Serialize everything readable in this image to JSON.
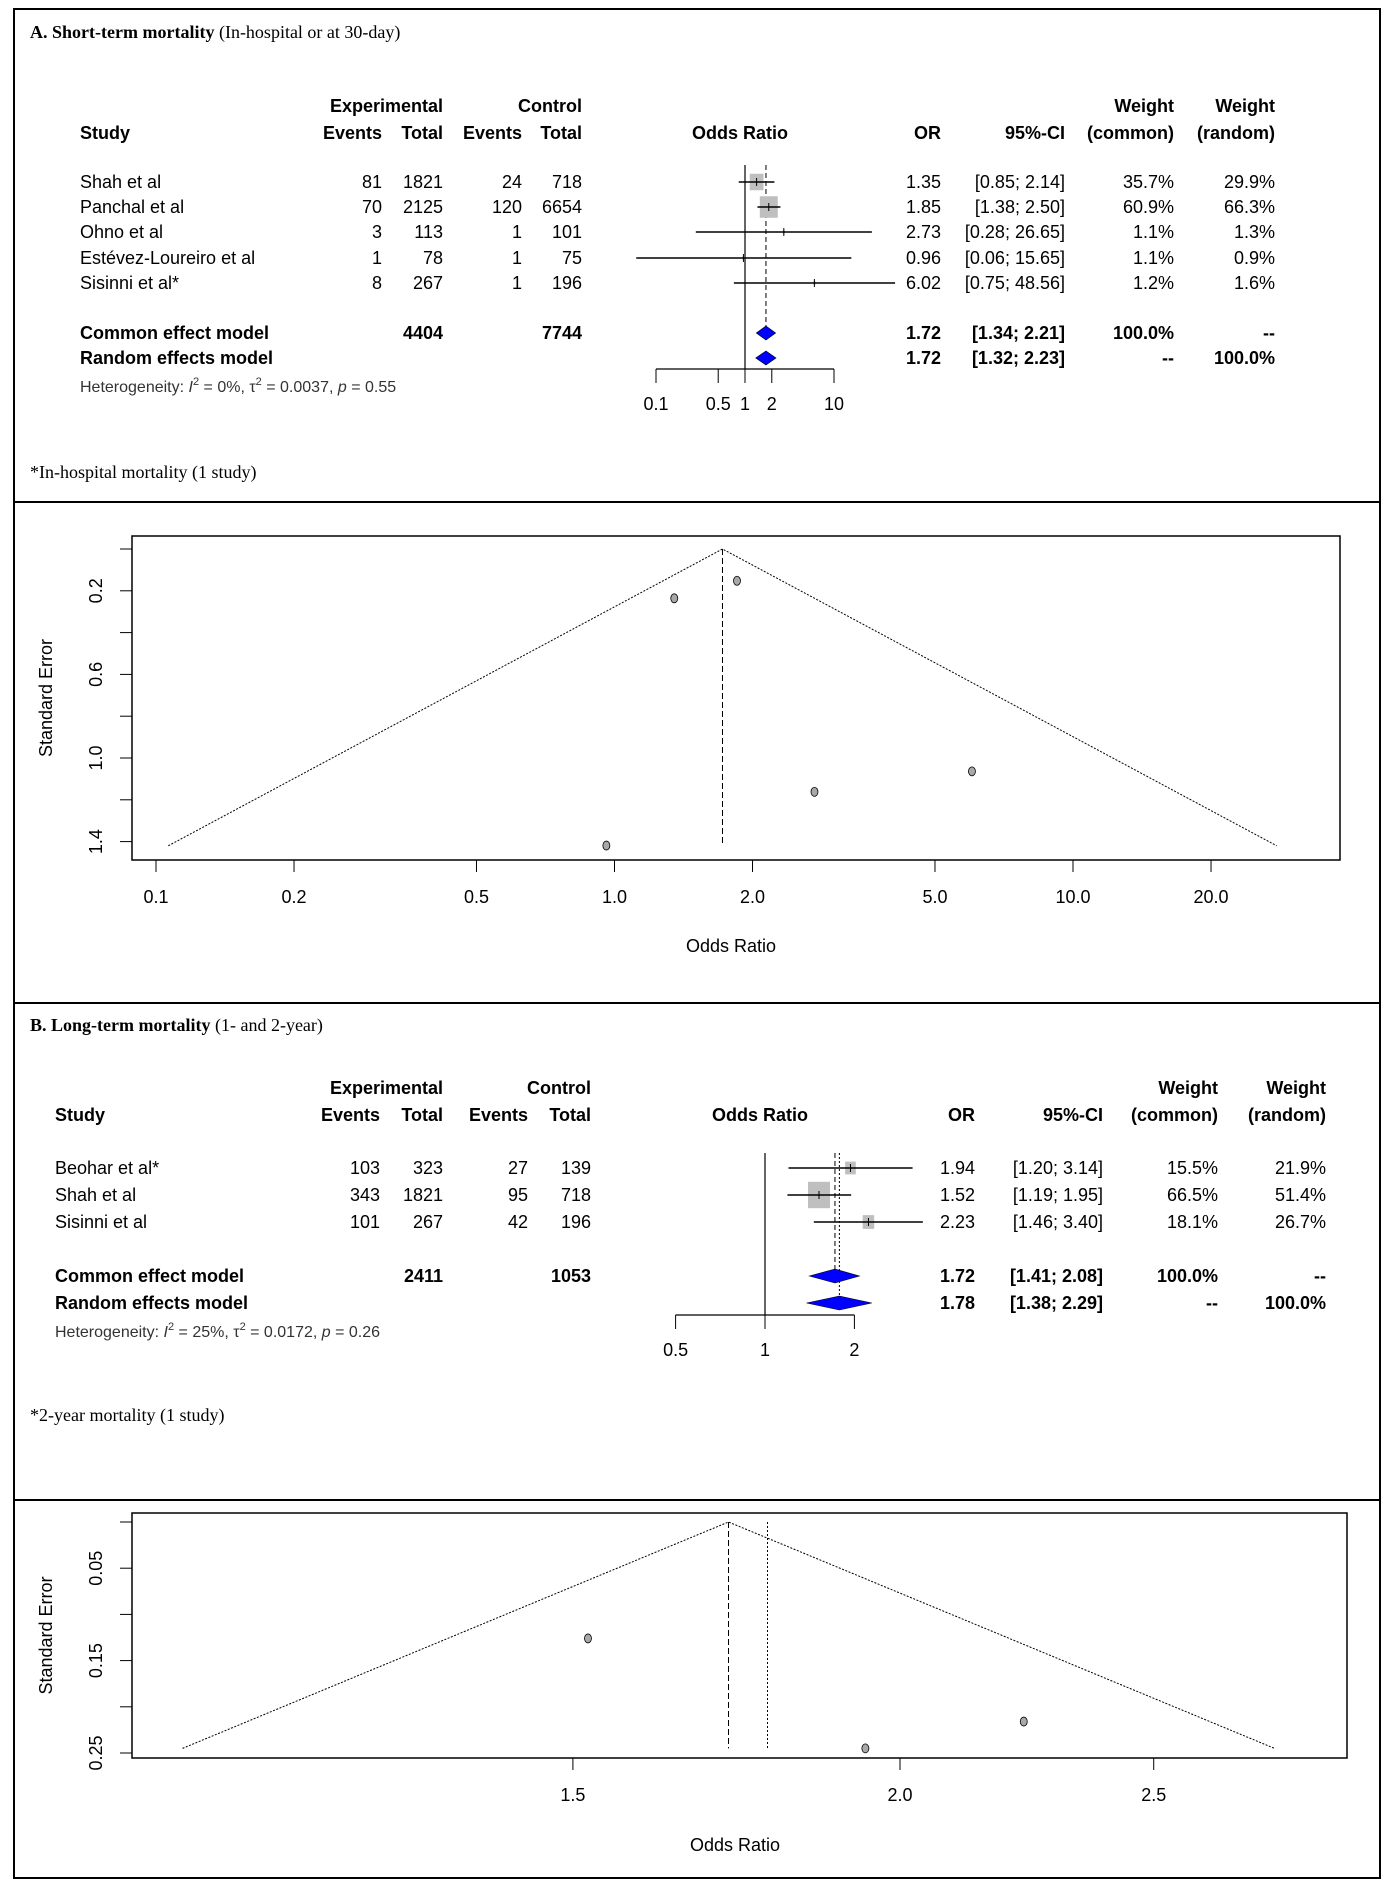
{
  "chart_data": [
    {
      "type": "forest",
      "panel": "A",
      "title_bold": "A. Short-term mortality",
      "title_rest": " (In-hospital or at 30-day)",
      "headers": {
        "study": "Study",
        "experimental": "Experimental",
        "control": "Control",
        "events": "Events",
        "total": "Total",
        "odds_ratio": "Odds Ratio",
        "or": "OR",
        "ci": "95%-CI",
        "weight": "Weight",
        "common": "(common)",
        "random": "(random)"
      },
      "studies": [
        {
          "name": "Shah et al",
          "e_events": "81",
          "e_total": "1821",
          "c_events": "24",
          "c_total": "718",
          "or": "1.35",
          "ci": "[0.85; 2.14]",
          "w_common": "35.7%",
          "w_random": "29.9%",
          "or_val": 1.35,
          "lo": 0.85,
          "hi": 2.14,
          "weight": 35.7
        },
        {
          "name": "Panchal et al",
          "e_events": "70",
          "e_total": "2125",
          "c_events": "120",
          "c_total": "6654",
          "or": "1.85",
          "ci": "[1.38; 2.50]",
          "w_common": "60.9%",
          "w_random": "66.3%",
          "or_val": 1.85,
          "lo": 1.38,
          "hi": 2.5,
          "weight": 60.9
        },
        {
          "name": "Ohno et al",
          "e_events": "3",
          "e_total": "113",
          "c_events": "1",
          "c_total": "101",
          "or": "2.73",
          "ci": "[0.28; 26.65]",
          "w_common": "1.1%",
          "w_random": "1.3%",
          "or_val": 2.73,
          "lo": 0.28,
          "hi": 26.65,
          "weight": 1.1
        },
        {
          "name": "Estévez-Loureiro et al",
          "e_events": "1",
          "e_total": "78",
          "c_events": "1",
          "c_total": "75",
          "or": "0.96",
          "ci": "[0.06; 15.65]",
          "w_common": "1.1%",
          "w_random": "0.9%",
          "or_val": 0.96,
          "lo": 0.06,
          "hi": 15.65,
          "weight": 1.1
        },
        {
          "name": "Sisinni et al*",
          "e_events": "8",
          "e_total": "267",
          "c_events": "1",
          "c_total": "196",
          "or": "6.02",
          "ci": "[0.75; 48.56]",
          "w_common": "1.2%",
          "w_random": "1.6%",
          "or_val": 6.02,
          "lo": 0.75,
          "hi": 48.56,
          "weight": 1.2
        }
      ],
      "common": {
        "label": "Common effect model",
        "e_total": "4404",
        "c_total": "7744",
        "or": "1.72",
        "ci": "[1.34; 2.21]",
        "w_common": "100.0%",
        "w_random": "--",
        "or_val": 1.72,
        "lo": 1.34,
        "hi": 2.21
      },
      "random": {
        "label": "Random effects model",
        "or": "1.72",
        "ci": "[1.32; 2.23]",
        "w_common": "--",
        "w_random": "100.0%",
        "or_val": 1.72,
        "lo": 1.32,
        "hi": 2.23
      },
      "heterogeneity": [
        {
          "t": "Heterogeneity: "
        },
        {
          "t": "I",
          "i": true
        },
        {
          "t": "2",
          "sup": true
        },
        {
          "t": " = 0%, τ"
        },
        {
          "t": "2",
          "sup": true
        },
        {
          "t": " = 0.0037, "
        },
        {
          "t": "p",
          "i": true
        },
        {
          "t": " = 0.55"
        }
      ],
      "axis_ticks": [
        0.1,
        0.5,
        1,
        2,
        10
      ],
      "axis_labels": [
        "0.1",
        "0.5",
        "1",
        "2",
        "10"
      ],
      "footnote": "*In-hospital mortality (1 study)"
    },
    {
      "type": "scatter",
      "panel": "A-funnel",
      "xlabel": "Odds Ratio",
      "ylabel": "Standard Error",
      "x_scale": "log",
      "x_ticks": [
        0.1,
        0.2,
        0.5,
        1,
        2,
        5,
        10,
        20
      ],
      "x_tick_labels": [
        "0.1",
        "0.2",
        "0.5",
        "1.0",
        "2.0",
        "5.0",
        "10.0",
        "20.0"
      ],
      "y_ticks": [
        0,
        0.2,
        0.4,
        0.6,
        0.8,
        1.0,
        1.2,
        1.4
      ],
      "y_tick_labels": [
        "",
        "0.2",
        "",
        "0.6",
        "",
        "1.0",
        "",
        "1.4"
      ],
      "y_reversed": true,
      "pooled": 1.72,
      "max_se": 1.42,
      "points": [
        {
          "or": 1.35,
          "se": 0.236
        },
        {
          "or": 1.85,
          "se": 0.152
        },
        {
          "or": 2.73,
          "se": 1.162
        },
        {
          "or": 0.96,
          "se": 1.419
        },
        {
          "or": 6.02,
          "se": 1.064
        }
      ]
    },
    {
      "type": "forest",
      "panel": "B",
      "title_bold": "B. Long-term mortality",
      "title_rest": " (1- and 2-year)",
      "headers": {
        "study": "Study",
        "experimental": "Experimental",
        "control": "Control",
        "events": "Events",
        "total": "Total",
        "odds_ratio": "Odds Ratio",
        "or": "OR",
        "ci": "95%-CI",
        "weight": "Weight",
        "common": "(common)",
        "random": "(random)"
      },
      "studies": [
        {
          "name": "Beohar et al*",
          "e_events": "103",
          "e_total": "323",
          "c_events": "27",
          "c_total": "139",
          "or": "1.94",
          "ci": "[1.20; 3.14]",
          "w_common": "15.5%",
          "w_random": "21.9%",
          "or_val": 1.94,
          "lo": 1.2,
          "hi": 3.14,
          "weight": 15.5
        },
        {
          "name": "Shah et al",
          "e_events": "343",
          "e_total": "1821",
          "c_events": "95",
          "c_total": "718",
          "or": "1.52",
          "ci": "[1.19; 1.95]",
          "w_common": "66.5%",
          "w_random": "51.4%",
          "or_val": 1.52,
          "lo": 1.19,
          "hi": 1.95,
          "weight": 66.5
        },
        {
          "name": "Sisinni et al",
          "e_events": "101",
          "e_total": "267",
          "c_events": "42",
          "c_total": "196",
          "or": "2.23",
          "ci": "[1.46; 3.40]",
          "w_common": "18.1%",
          "w_random": "26.7%",
          "or_val": 2.23,
          "lo": 1.46,
          "hi": 3.4,
          "weight": 18.1
        }
      ],
      "common": {
        "label": "Common effect model",
        "e_total": "2411",
        "c_total": "1053",
        "or": "1.72",
        "ci": "[1.41; 2.08]",
        "w_common": "100.0%",
        "w_random": "--",
        "or_val": 1.72,
        "lo": 1.41,
        "hi": 2.08
      },
      "random": {
        "label": "Random effects model",
        "or": "1.78",
        "ci": "[1.38; 2.29]",
        "w_common": "--",
        "w_random": "100.0%",
        "or_val": 1.78,
        "lo": 1.38,
        "hi": 2.29
      },
      "heterogeneity": [
        {
          "t": "Heterogeneity: "
        },
        {
          "t": "I",
          "i": true
        },
        {
          "t": "2",
          "sup": true
        },
        {
          "t": " = 25%, τ"
        },
        {
          "t": "2",
          "sup": true
        },
        {
          "t": " = 0.0172, "
        },
        {
          "t": "p",
          "i": true
        },
        {
          "t": " = 0.26"
        }
      ],
      "axis_ticks": [
        0.5,
        1,
        2
      ],
      "axis_labels": [
        "0.5",
        "1",
        "2"
      ],
      "footnote": "*2-year mortality (1 study)"
    },
    {
      "type": "scatter",
      "panel": "B-funnel",
      "xlabel": "Odds Ratio",
      "ylabel": "Standard Error",
      "x_scale": "log",
      "x_ticks": [
        1.5,
        2.0,
        2.5
      ],
      "x_tick_labels": [
        "1.5",
        "2.0",
        "2.5"
      ],
      "y_ticks": [
        0,
        0.05,
        0.1,
        0.15,
        0.2,
        0.25
      ],
      "y_tick_labels": [
        "",
        "0.05",
        "",
        "0.15",
        "",
        "0.25"
      ],
      "y_reversed": true,
      "pooled": 1.72,
      "pooled_random": 1.78,
      "max_se": 0.245,
      "points": [
        {
          "or": 1.94,
          "se": 0.245
        },
        {
          "or": 1.52,
          "se": 0.126
        },
        {
          "or": 2.23,
          "se": 0.216
        }
      ]
    }
  ],
  "colors": {
    "diamond": "#0000ff",
    "box": "#bfbfbf",
    "point": "#a8a8a8"
  }
}
